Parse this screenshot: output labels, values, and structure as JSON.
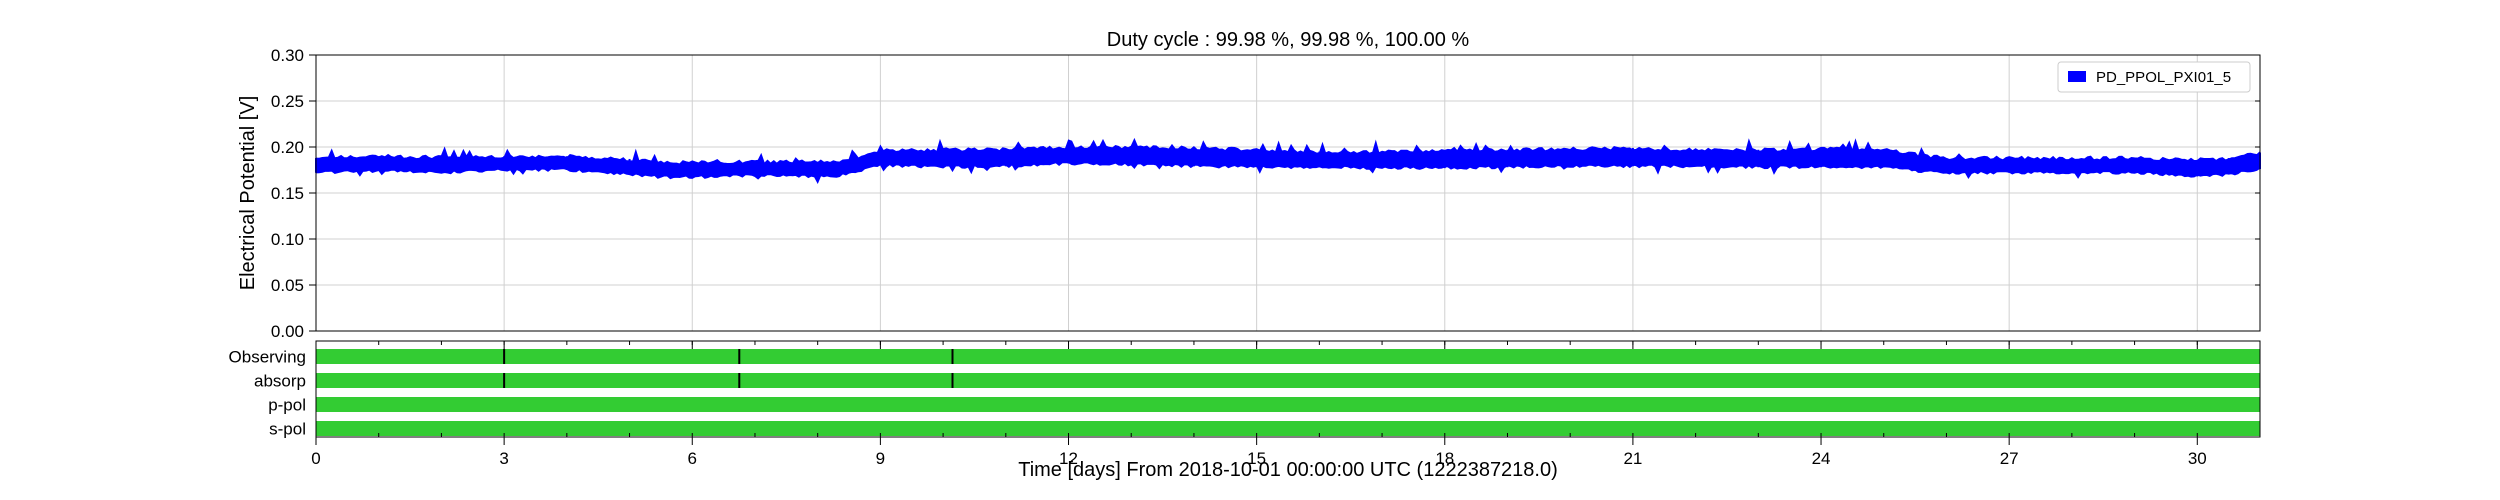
{
  "chart_data": {
    "type": "line",
    "title": "Duty cycle : 99.98 %, 99.98 %, 100.00 %",
    "xlabel": "Time [days] From 2018-10-01 00:00:00 UTC (1222387218.0)",
    "ylabel": "Electrical Potential [V]",
    "xlim": [
      0,
      31
    ],
    "ylim": [
      0.0,
      0.3
    ],
    "x_ticks": [
      0,
      3,
      6,
      9,
      12,
      15,
      18,
      21,
      24,
      27,
      30
    ],
    "x_tick_labels": [
      "0",
      "3",
      "6",
      "9",
      "12",
      "15",
      "18",
      "21",
      "24",
      "27",
      "30"
    ],
    "y_ticks": [
      0.0,
      0.05,
      0.1,
      0.15,
      0.2,
      0.25,
      0.3
    ],
    "y_tick_labels": [
      "0.00",
      "0.05",
      "0.10",
      "0.15",
      "0.20",
      "0.25",
      "0.30"
    ],
    "grid": true,
    "legend_position": "top-right",
    "series": [
      {
        "name": "PD_PPOL_PXI01_5",
        "color": "#0000ff",
        "style": "filled min-max band",
        "x": [
          0,
          1,
          2,
          3,
          4,
          5,
          5.5,
          6,
          7,
          8,
          8.3,
          9,
          10,
          11,
          12,
          13,
          14,
          15,
          16,
          17,
          18,
          19,
          20,
          21,
          22,
          23,
          24,
          25,
          25.5,
          26,
          27,
          28,
          29,
          30,
          30.5,
          31
        ],
        "min": [
          0.172,
          0.174,
          0.172,
          0.175,
          0.175,
          0.17,
          0.167,
          0.167,
          0.169,
          0.168,
          0.168,
          0.18,
          0.178,
          0.179,
          0.182,
          0.181,
          0.179,
          0.178,
          0.178,
          0.177,
          0.177,
          0.178,
          0.179,
          0.179,
          0.179,
          0.178,
          0.178,
          0.178,
          0.174,
          0.172,
          0.172,
          0.172,
          0.172,
          0.168,
          0.17,
          0.176
        ],
        "max": [
          0.188,
          0.19,
          0.189,
          0.19,
          0.19,
          0.187,
          0.184,
          0.183,
          0.184,
          0.184,
          0.184,
          0.196,
          0.197,
          0.198,
          0.2,
          0.2,
          0.199,
          0.197,
          0.195,
          0.195,
          0.196,
          0.197,
          0.198,
          0.199,
          0.197,
          0.197,
          0.198,
          0.197,
          0.192,
          0.188,
          0.188,
          0.188,
          0.188,
          0.186,
          0.188,
          0.194
        ]
      }
    ],
    "segments": {
      "labels": [
        "Observing",
        "absorp",
        "p-pol",
        "s-pol"
      ],
      "color": "#33cc33",
      "gap_color": "#000000",
      "gaps": [
        [
          3.0,
          6.75,
          10.15
        ],
        [
          3.0,
          6.75,
          10.15
        ],
        [],
        []
      ]
    }
  }
}
